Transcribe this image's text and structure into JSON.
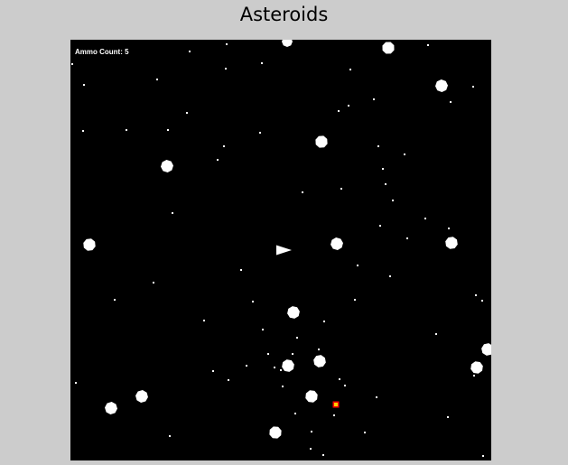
{
  "page": {
    "title": "Asteroids"
  },
  "hud": {
    "ammo_label": "Ammo Count:",
    "ammo_count": 5
  },
  "colors": {
    "page_background": "#cccccc",
    "canvas_background": "#000000",
    "foreground": "#ffffff",
    "pickup": "#ff0000",
    "pickup_core": "#ffcc00"
  }
}
